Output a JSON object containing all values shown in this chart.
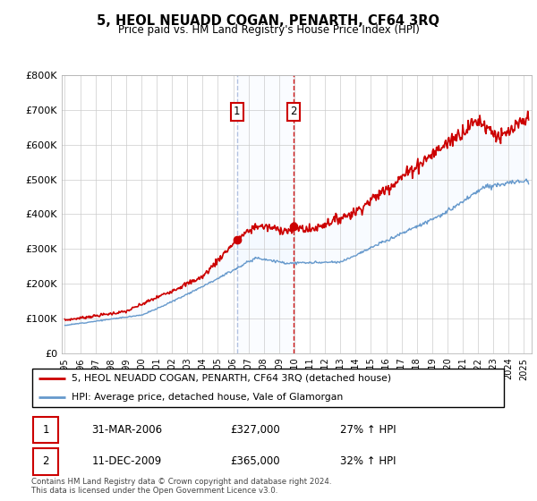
{
  "title": "5, HEOL NEUADD COGAN, PENARTH, CF64 3RQ",
  "subtitle": "Price paid vs. HM Land Registry's House Price Index (HPI)",
  "legend_line1": "5, HEOL NEUADD COGAN, PENARTH, CF64 3RQ (detached house)",
  "legend_line2": "HPI: Average price, detached house, Vale of Glamorgan",
  "annotation1": {
    "label": "1",
    "date": "31-MAR-2006",
    "price": "£327,000",
    "hpi": "27% ↑ HPI",
    "x_year": 2006.25,
    "y_val": 327000
  },
  "annotation2": {
    "label": "2",
    "date": "11-DEC-2009",
    "price": "£365,000",
    "hpi": "32% ↑ HPI",
    "x_year": 2009.92,
    "y_val": 365000
  },
  "footer": "Contains HM Land Registry data © Crown copyright and database right 2024.\nThis data is licensed under the Open Government Licence v3.0.",
  "ylim": [
    0,
    800000
  ],
  "yticks": [
    0,
    100000,
    200000,
    300000,
    400000,
    500000,
    600000,
    700000,
    800000
  ],
  "ytick_labels": [
    "£0",
    "£100K",
    "£200K",
    "£300K",
    "£400K",
    "£500K",
    "£600K",
    "£700K",
    "£800K"
  ],
  "xlim_start": 1994.8,
  "xlim_end": 2025.5,
  "xticks": [
    1995,
    1996,
    1997,
    1998,
    1999,
    2000,
    2001,
    2002,
    2003,
    2004,
    2005,
    2006,
    2007,
    2008,
    2009,
    2010,
    2011,
    2012,
    2013,
    2014,
    2015,
    2016,
    2017,
    2018,
    2019,
    2020,
    2021,
    2022,
    2023,
    2024,
    2025
  ],
  "line_color_red": "#cc0000",
  "line_color_blue": "#6699cc",
  "shade_color": "#ddeeff",
  "annotation_box_color": "#cc0000",
  "vline1_color": "#aabbdd",
  "vline2_color": "#cc0000",
  "background_color": "#ffffff",
  "grid_color": "#cccccc"
}
